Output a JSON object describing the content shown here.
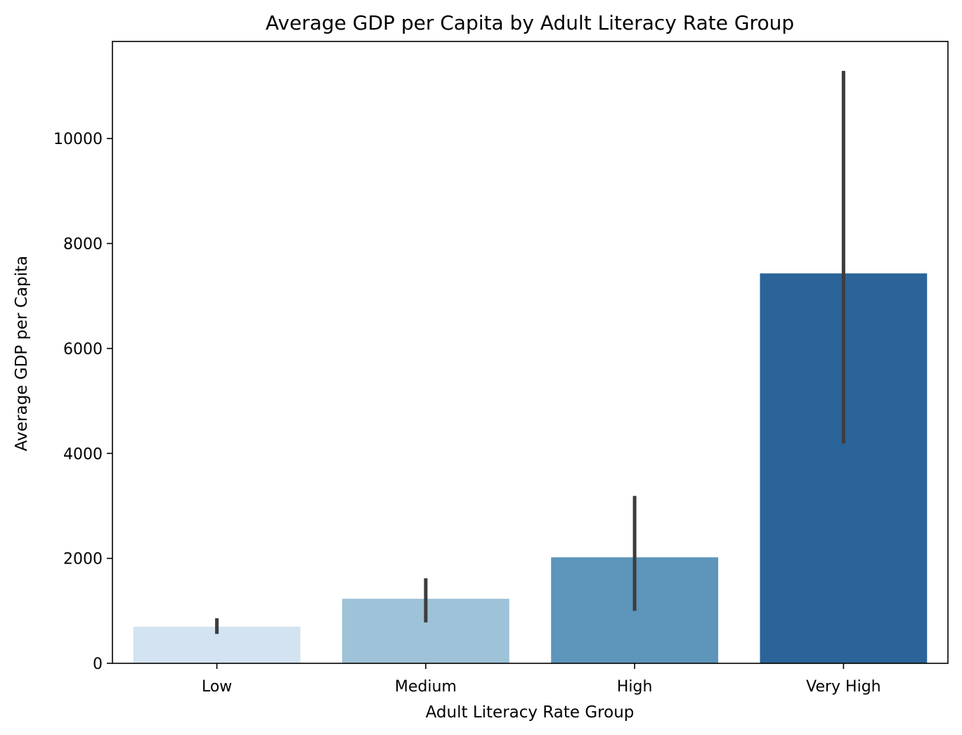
{
  "chart_data": {
    "type": "bar",
    "title": "Average GDP per Capita by Adult Literacy Rate Group",
    "xlabel": "Adult Literacy Rate Group",
    "ylabel": "Average GDP per Capita",
    "categories": [
      "Low",
      "Medium",
      "High",
      "Very High"
    ],
    "values": [
      700,
      1230,
      2020,
      7430
    ],
    "error_low": [
      560,
      780,
      1000,
      4190
    ],
    "error_high": [
      860,
      1620,
      3190,
      11290
    ],
    "colors": [
      "#d4e3f1",
      "#9ec2d7",
      "#5d95bb",
      "#2b6499"
    ],
    "error_color": "#3d3d3d",
    "ylim": [
      0,
      11850
    ],
    "yticks": [
      0,
      2000,
      4000,
      6000,
      8000,
      10000
    ],
    "grid": false,
    "legend": "none"
  }
}
